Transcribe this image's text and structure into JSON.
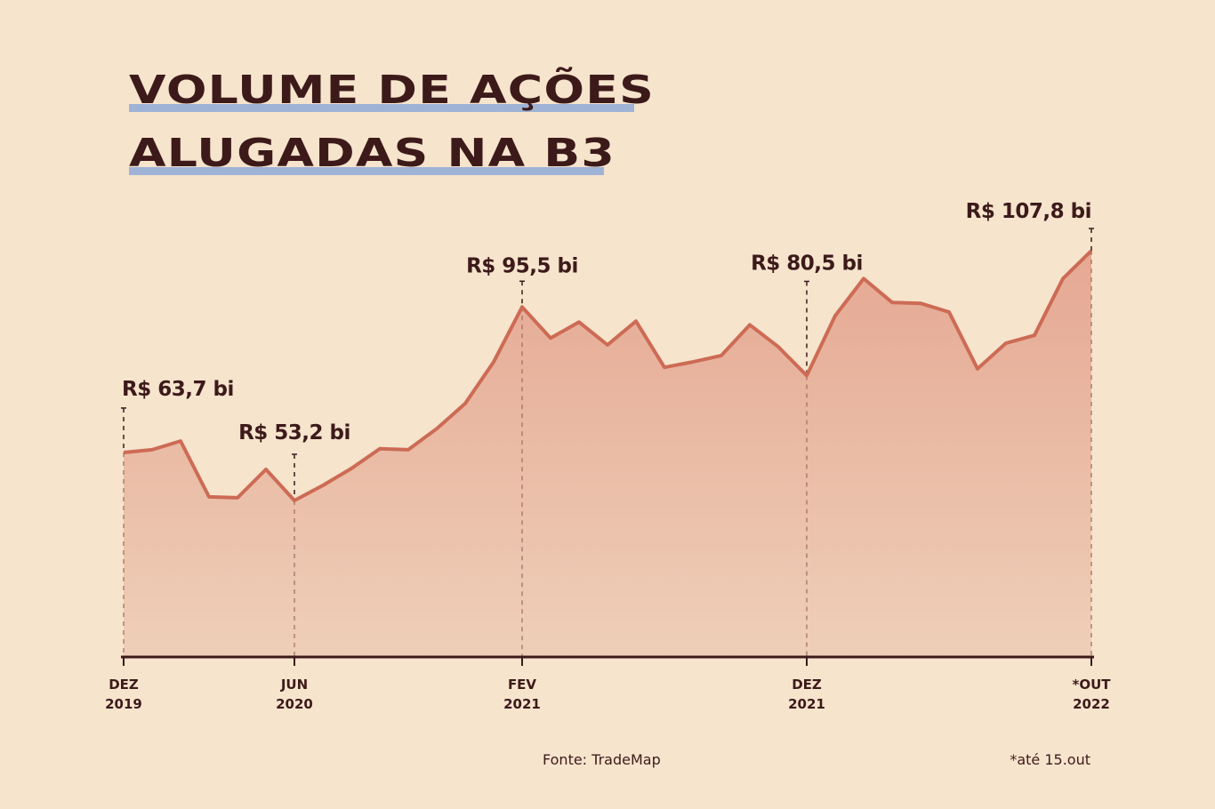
{
  "chart_data": {
    "type": "area",
    "title_lines": [
      "VOLUME DE AÇÕES",
      "ALUGADAS NA B3"
    ],
    "unit": "R$ bi",
    "ylim": [
      19,
      110
    ],
    "values": [
      63.7,
      64.3,
      66.2,
      54.0,
      53.8,
      60.0,
      53.2,
      56.5,
      60.2,
      64.5,
      64.3,
      68.9,
      74.4,
      83.5,
      95.5,
      88.7,
      92.2,
      87.2,
      92.4,
      82.3,
      83.5,
      84.9,
      91.6,
      86.8,
      80.5,
      93.6,
      101.7,
      96.5,
      96.3,
      94.4,
      82.0,
      87.6,
      89.3,
      101.7,
      107.8
    ],
    "period": "monthly, DEZ 2019 – OUT 2022",
    "x_ticks": [
      {
        "index": 0,
        "line1": "DEZ",
        "line2": "2019"
      },
      {
        "index": 6,
        "line1": "JUN",
        "line2": "2020"
      },
      {
        "index": 14,
        "line1": "FEV",
        "line2": "2021"
      },
      {
        "index": 24,
        "line1": "DEZ",
        "line2": "2021"
      },
      {
        "index": 34,
        "line1": "*OUT",
        "line2": "2022"
      }
    ],
    "annotations": [
      {
        "index": 0,
        "text": "R$ 63,7 bi"
      },
      {
        "index": 6,
        "text": "R$ 53,2 bi"
      },
      {
        "index": 14,
        "text": "R$ 95,5 bi"
      },
      {
        "index": 24,
        "text": "R$ 80,5 bi"
      },
      {
        "index": 34,
        "text": "R$ 107,8 bi"
      }
    ],
    "source": "Fonte: TradeMap",
    "footnote": "*até 15.out",
    "colors": {
      "line": "#cd6b55",
      "fill_top": "#e5a893",
      "fill_bottom": "#efcfb8",
      "axis": "#3d1a1a",
      "title_underline": "#9fb3d6"
    }
  }
}
